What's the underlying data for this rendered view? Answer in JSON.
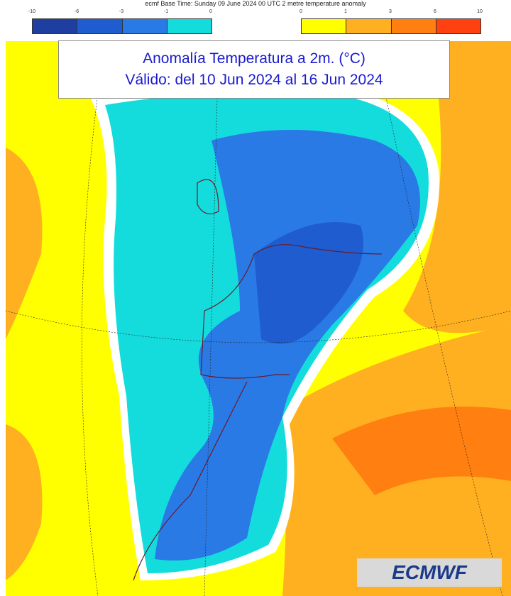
{
  "header": {
    "text": "ecmf  Base Time: Sunday 09 June 2024 00 UTC 2 metre temperature anomaly"
  },
  "legend_cold": {
    "ticks": [
      "-10",
      "-6",
      "-3",
      "-1",
      "0"
    ],
    "colors": [
      "#1e3fa0",
      "#1f5cd0",
      "#2a7ae6",
      "#14dcdc"
    ]
  },
  "legend_warm": {
    "ticks": [
      "0",
      "1",
      "3",
      "6",
      "10"
    ],
    "colors": [
      "#ffff00",
      "#ffb020",
      "#ff8010",
      "#ff4010"
    ]
  },
  "title": {
    "line1": "Anomalía Temperatura a 2m. (°C)",
    "line2": "Válido: del 10 Jun 2024 al 16 Jun 2024"
  },
  "logo": {
    "text": "ECMWF"
  }
}
